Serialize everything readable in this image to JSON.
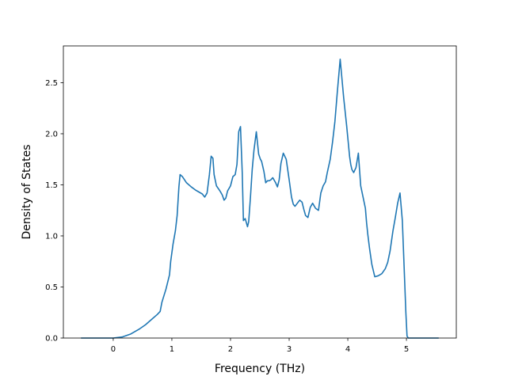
{
  "chart_data": {
    "type": "line",
    "title": "",
    "xlabel": "Frequency (THz)",
    "ylabel": "Density of States",
    "xlim": [
      -0.85,
      5.85
    ],
    "ylim": [
      0.0,
      2.86
    ],
    "xticks": [
      0,
      1,
      2,
      3,
      4,
      5
    ],
    "xtick_labels": [
      "0",
      "1",
      "2",
      "3",
      "4",
      "5"
    ],
    "yticks": [
      0.0,
      0.5,
      1.0,
      1.5,
      2.0,
      2.5
    ],
    "ytick_labels": [
      "0.0",
      "0.5",
      "1.0",
      "1.5",
      "2.0",
      "2.5"
    ],
    "grid": false,
    "legend": "none",
    "colors": {
      "line": "#1f77b4",
      "axes": "#000000",
      "background": "#ffffff"
    },
    "series": [
      {
        "x": [
          -0.55,
          0.0,
          0.15,
          0.3,
          0.45,
          0.55,
          0.65,
          0.75,
          0.8,
          0.83,
          0.9,
          0.96,
          0.98,
          1.02,
          1.06,
          1.09,
          1.12,
          1.14,
          1.18,
          1.25,
          1.33,
          1.4,
          1.46,
          1.52,
          1.56,
          1.6,
          1.64,
          1.67,
          1.7,
          1.72,
          1.76,
          1.82,
          1.86,
          1.89,
          1.92,
          1.95,
          2.0,
          2.04,
          2.08,
          2.11,
          2.14,
          2.17,
          2.2,
          2.22,
          2.25,
          2.27,
          2.29,
          2.31,
          2.34,
          2.37,
          2.4,
          2.44,
          2.48,
          2.51,
          2.53,
          2.57,
          2.6,
          2.63,
          2.66,
          2.69,
          2.72,
          2.77,
          2.8,
          2.83,
          2.86,
          2.9,
          2.95,
          3.0,
          3.04,
          3.07,
          3.1,
          3.14,
          3.18,
          3.22,
          3.25,
          3.28,
          3.32,
          3.36,
          3.4,
          3.45,
          3.5,
          3.54,
          3.58,
          3.62,
          3.65,
          3.7,
          3.74,
          3.78,
          3.82,
          3.87,
          3.93,
          3.98,
          4.01,
          4.03,
          4.05,
          4.07,
          4.1,
          4.14,
          4.18,
          4.22,
          4.26,
          4.3,
          4.32,
          4.34,
          4.37,
          4.41,
          4.46,
          4.52,
          4.58,
          4.64,
          4.68,
          4.72,
          4.77,
          4.81,
          4.85,
          4.89,
          4.93,
          4.96,
          4.99,
          5.01,
          5.03,
          5.05,
          5.07,
          5.1,
          5.3,
          5.55
        ],
        "y": [
          0.0,
          0.0,
          0.01,
          0.04,
          0.09,
          0.13,
          0.18,
          0.23,
          0.26,
          0.35,
          0.48,
          0.62,
          0.75,
          0.92,
          1.05,
          1.2,
          1.48,
          1.6,
          1.58,
          1.52,
          1.48,
          1.45,
          1.43,
          1.41,
          1.38,
          1.42,
          1.6,
          1.78,
          1.76,
          1.6,
          1.49,
          1.44,
          1.4,
          1.35,
          1.37,
          1.44,
          1.49,
          1.58,
          1.6,
          1.7,
          2.02,
          2.07,
          1.62,
          1.15,
          1.17,
          1.13,
          1.09,
          1.14,
          1.38,
          1.65,
          1.84,
          2.02,
          1.8,
          1.75,
          1.73,
          1.63,
          1.52,
          1.54,
          1.54,
          1.55,
          1.57,
          1.52,
          1.48,
          1.55,
          1.71,
          1.81,
          1.75,
          1.55,
          1.38,
          1.31,
          1.29,
          1.32,
          1.35,
          1.33,
          1.26,
          1.2,
          1.18,
          1.28,
          1.32,
          1.27,
          1.25,
          1.42,
          1.49,
          1.53,
          1.62,
          1.75,
          1.92,
          2.12,
          2.4,
          2.73,
          2.35,
          2.08,
          1.9,
          1.78,
          1.7,
          1.65,
          1.62,
          1.67,
          1.81,
          1.49,
          1.38,
          1.27,
          1.13,
          1.02,
          0.88,
          0.72,
          0.6,
          0.61,
          0.63,
          0.68,
          0.74,
          0.85,
          1.05,
          1.18,
          1.32,
          1.42,
          1.15,
          0.7,
          0.25,
          0.02,
          0.0,
          0.0,
          0.0,
          0.0,
          0.0,
          0.0
        ]
      }
    ]
  }
}
